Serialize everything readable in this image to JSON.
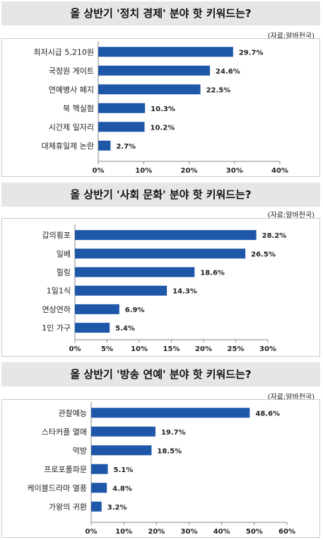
{
  "chart_data": [
    {
      "type": "bar",
      "orientation": "horizontal",
      "title": "올 상반기 '정치 경제' 분야 핫 키워드는?",
      "source": "(자료:알바천국)",
      "categories": [
        "최저시급 5,210원",
        "국정원 게이트",
        "연예병사 폐지",
        "북 핵실험",
        "시간제 일자리",
        "대체휴일제 논란"
      ],
      "values": [
        29.7,
        24.6,
        22.5,
        10.3,
        10.2,
        2.7
      ],
      "value_labels": [
        "29.7%",
        "24.6%",
        "22.5%",
        "10.3%",
        "10.2%",
        "2.7%"
      ],
      "ticks": [
        "0%",
        "10%",
        "20%",
        "30%",
        "40%"
      ],
      "xlim": [
        0,
        40
      ],
      "bar_color": "#1f57a8",
      "grid": false
    },
    {
      "type": "bar",
      "orientation": "horizontal",
      "title": "올 상반기 '사회 문화' 분야 핫 키워드는?",
      "source": "(자료:알바천국)",
      "categories": [
        "갑의횡포",
        "일베",
        "힐링",
        "1일1식",
        "연상연하",
        "1인 가구"
      ],
      "values": [
        28.2,
        26.5,
        18.6,
        14.3,
        6.9,
        5.4
      ],
      "value_labels": [
        "28.2%",
        "26.5%",
        "18.6%",
        "14.3%",
        "6.9%",
        "5.4%"
      ],
      "ticks": [
        "0%",
        "5%",
        "10%",
        "15%",
        "20%",
        "25%",
        "30%"
      ],
      "xlim": [
        0,
        30
      ],
      "bar_color": "#1f57a8",
      "grid": false
    },
    {
      "type": "bar",
      "orientation": "horizontal",
      "title": "올 상반기 '방송 연예' 분야 핫 키워드는?",
      "source": "(자료:알바천국)",
      "categories": [
        "관찰예능",
        "스타커플 열애",
        "먹방",
        "프로포폴파문",
        "케이블드라마 열풍",
        "가왕의 귀환"
      ],
      "values": [
        48.6,
        19.7,
        18.5,
        5.1,
        4.8,
        3.2
      ],
      "value_labels": [
        "48.6%",
        "19.7%",
        "18.5%",
        "5.1%",
        "4.8%",
        "3.2%"
      ],
      "ticks": [
        "0%",
        "10%",
        "20%",
        "30%",
        "40%",
        "50%",
        "60%"
      ],
      "xlim": [
        0,
        60
      ],
      "bar_color": "#1f57a8",
      "grid": false
    }
  ]
}
